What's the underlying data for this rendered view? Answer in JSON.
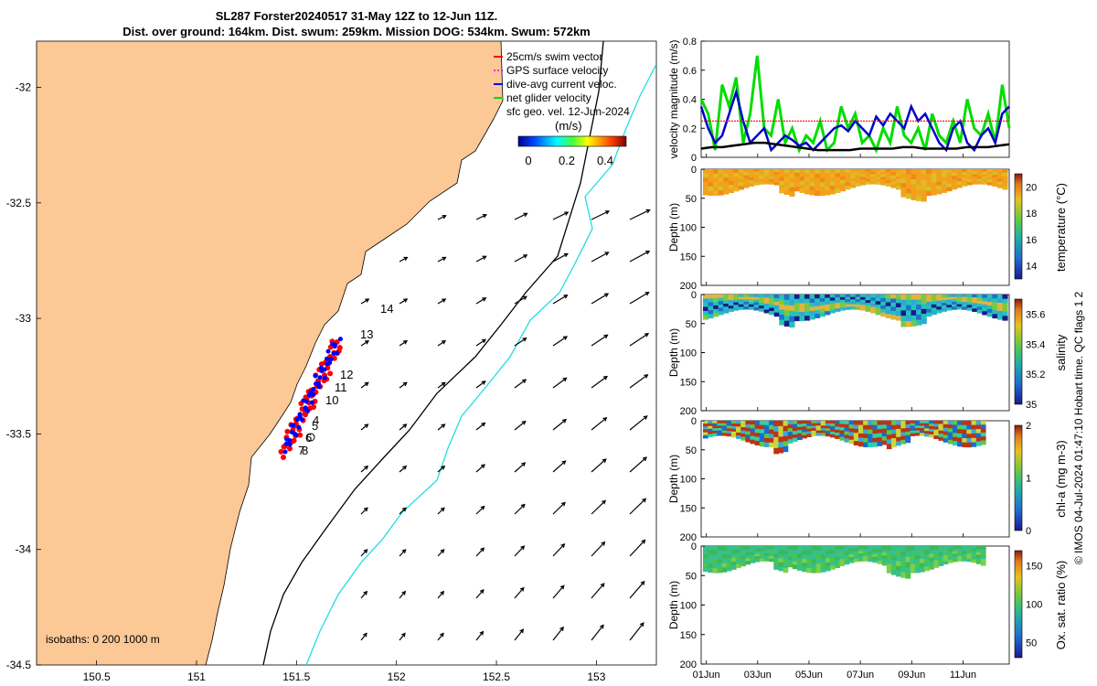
{
  "title_line1": "SL287 Forster20240517 31-May 12Z to 12-Jun 11Z.",
  "title_line2": "Dist. over ground: 164km. Dist. swum: 259km. Mission DOG: 534km. Swum: 572km",
  "map": {
    "lon_ticks": [
      "150.5",
      "151",
      "151.5",
      "152",
      "152.5",
      "153"
    ],
    "lat_ticks": [
      "-32",
      "-32.5",
      "-33",
      "-33.5",
      "-34",
      "-34.5"
    ],
    "xlim": [
      150.2,
      153.3
    ],
    "ylim": [
      -34.5,
      -31.8
    ],
    "legend": [
      {
        "label": "25cm/s swim vector",
        "color": "#ff0000"
      },
      {
        "label": "GPS surface velocity",
        "color": "#ff00ff"
      },
      {
        "label": "dive-avg current veloc.",
        "color": "#0000ff"
      },
      {
        "label": "net glider velocity",
        "color": "#00dd00"
      }
    ],
    "sfc_label": "sfc geo. vel. 12-Jun-2024",
    "colorbar_unit": "(m/s)",
    "colorbar_ticks": [
      "0",
      "0.2",
      "0.4"
    ],
    "isobaths_label": "isobaths: 0   200  1000 m",
    "day_labels": [
      "14",
      "13",
      "12",
      "11",
      "10",
      "4",
      "5",
      "6",
      "7",
      "8"
    ],
    "colors": {
      "land": "#fbc896",
      "isobath200": "#000000",
      "isobath1000": "#22dddd",
      "track_red": "#ff0000",
      "track_blue": "#0000ff"
    }
  },
  "chart_data": [
    {
      "type": "line",
      "ylabel": "velocity magnitude (m/s)",
      "ylim": [
        0,
        0.8
      ],
      "yticks": [
        "0",
        "0.2",
        "0.4",
        "0.6",
        "0.8"
      ],
      "series": [
        {
          "color": "#00dd00",
          "values": [
            0.4,
            0.3,
            0.05,
            0.5,
            0.35,
            0.55,
            0.1,
            0.3,
            0.7,
            0.2,
            0.15,
            0.4,
            0.1,
            0.2,
            0.05,
            0.15,
            0.1,
            0.25,
            0.05,
            0.1,
            0.35,
            0.2,
            0.3,
            0.1,
            0.15,
            0.05,
            0.2,
            0.1,
            0.35,
            0.15,
            0.1,
            0.2,
            0.05,
            0.3,
            0.15,
            0.1,
            0.25,
            0.1,
            0.4,
            0.2,
            0.15,
            0.3,
            0.1,
            0.5,
            0.2
          ]
        },
        {
          "color": "#0000cc",
          "values": [
            0.35,
            0.2,
            0.1,
            0.15,
            0.3,
            0.45,
            0.25,
            0.1,
            0.15,
            0.2,
            0.05,
            0.1,
            0.15,
            0.12,
            0.08,
            0.1,
            0.05,
            0.1,
            0.15,
            0.2,
            0.22,
            0.18,
            0.25,
            0.2,
            0.15,
            0.28,
            0.22,
            0.3,
            0.25,
            0.2,
            0.35,
            0.25,
            0.3,
            0.2,
            0.1,
            0.05,
            0.2,
            0.25,
            0.1,
            0.05,
            0.15,
            0.2,
            0.1,
            0.3,
            0.35
          ]
        },
        {
          "color": "#ff0000",
          "values": [
            0.25,
            0.25,
            0.25,
            0.25,
            0.25,
            0.25,
            0.25,
            0.25,
            0.25,
            0.25,
            0.25,
            0.25,
            0.25,
            0.25,
            0.25,
            0.25,
            0.25,
            0.25,
            0.25,
            0.25,
            0.25,
            0.25,
            0.25,
            0.25,
            0.25,
            0.25,
            0.25,
            0.25,
            0.25,
            0.25
          ]
        },
        {
          "color": "#000000",
          "values": [
            0.06,
            0.07,
            0.07,
            0.08,
            0.09,
            0.1,
            0.1,
            0.09,
            0.08,
            0.07,
            0.06,
            0.05,
            0.05,
            0.05,
            0.05,
            0.06,
            0.06,
            0.06,
            0.06,
            0.07,
            0.07,
            0.06,
            0.06,
            0.06,
            0.06,
            0.07,
            0.07,
            0.07,
            0.08,
            0.09
          ]
        }
      ]
    },
    {
      "type": "heatmap",
      "ylabel": "Depth (m)",
      "clabel": "temperature (°C)",
      "ylim": [
        0,
        200
      ],
      "yticks": [
        "0",
        "50",
        "100",
        "150",
        "200"
      ],
      "cticks": [
        "20",
        "18",
        "16",
        "14"
      ],
      "crange": [
        13,
        21
      ]
    },
    {
      "type": "heatmap",
      "ylabel": "Depth (m)",
      "clabel": "salinity",
      "ylim": [
        0,
        200
      ],
      "yticks": [
        "0",
        "50",
        "100",
        "150",
        "200"
      ],
      "cticks": [
        "35.6",
        "35.4",
        "35.2",
        "35"
      ],
      "crange": [
        35,
        35.7
      ]
    },
    {
      "type": "heatmap",
      "ylabel": "Depth (m)",
      "clabel": "chl-a (mg m-3)",
      "ylim": [
        0,
        200
      ],
      "yticks": [
        "0",
        "50",
        "100",
        "150",
        "200"
      ],
      "cticks": [
        "2",
        "1",
        "0"
      ],
      "crange": [
        0,
        2
      ]
    },
    {
      "type": "heatmap",
      "ylabel": "Depth (m)",
      "clabel": "Ox. sat. ratio (%)",
      "ylim": [
        0,
        200
      ],
      "yticks": [
        "0",
        "50",
        "100",
        "150",
        "200"
      ],
      "cticks": [
        "150",
        "100",
        "50"
      ],
      "crange": [
        30,
        170
      ]
    }
  ],
  "time_ticks": [
    "01Jun",
    "03Jun",
    "05Jun",
    "07Jun",
    "09Jun",
    "11Jun"
  ],
  "footer": "© IMOS 04-Jul-2024 01:47:10 Hobart time. QC flags 1  2"
}
